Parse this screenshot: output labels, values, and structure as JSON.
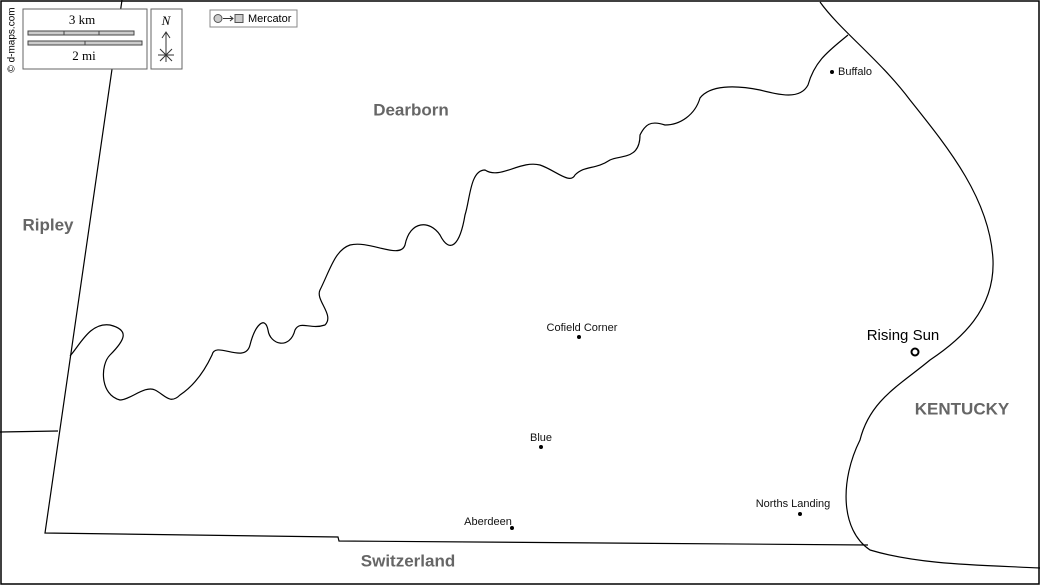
{
  "credit": "© d-maps.com",
  "scale": {
    "km": "3 km",
    "mi": "2 mi"
  },
  "north": "N",
  "projection": "Mercator",
  "regions": [
    {
      "label": "Dearborn"
    },
    {
      "label": "Ripley"
    },
    {
      "label": "Switzerland"
    },
    {
      "label": "KENTUCKY"
    }
  ],
  "places": [
    {
      "label": "Buffalo"
    },
    {
      "label": "Cofield Corner"
    },
    {
      "label": "Blue"
    },
    {
      "label": "Aberdeen"
    },
    {
      "label": "Norths Landing"
    },
    {
      "label": "Rising Sun"
    }
  ]
}
